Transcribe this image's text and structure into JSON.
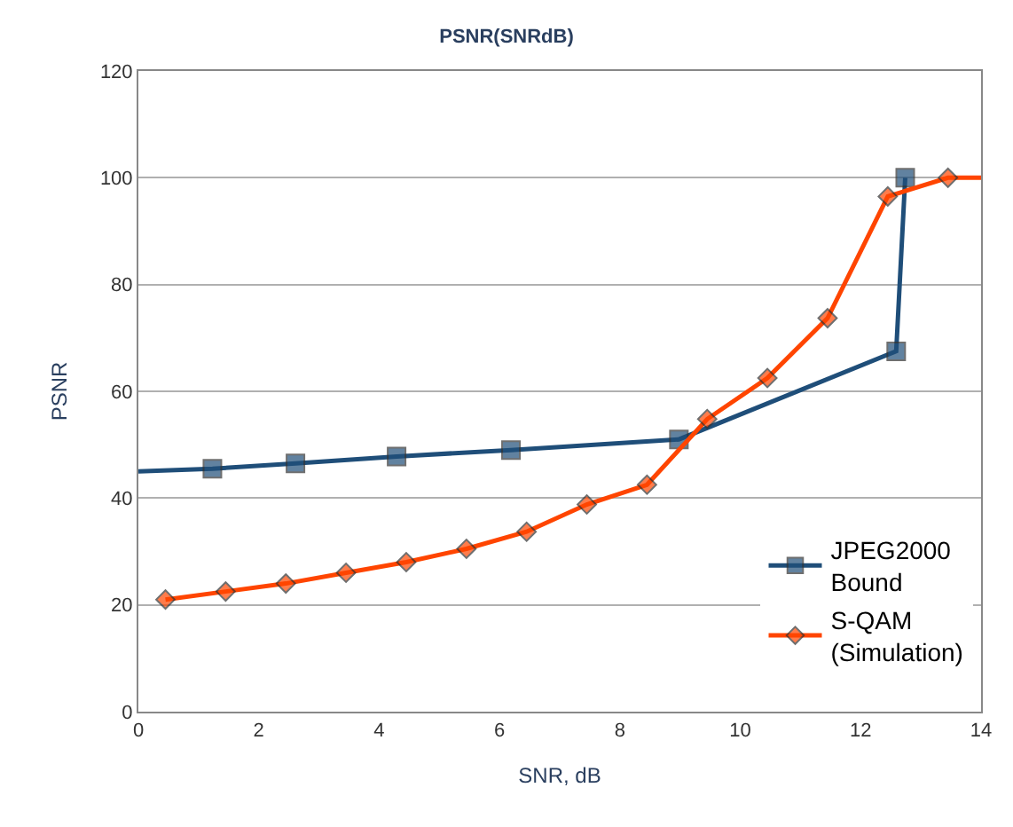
{
  "chart_data": {
    "type": "line",
    "title": "PSNR(SNRdB)",
    "xlabel": "SNR, dB",
    "ylabel": "PSNR",
    "xlim": [
      0,
      14
    ],
    "xticks": [
      0,
      2,
      4,
      6,
      8,
      10,
      12,
      14
    ],
    "ylim": [
      0,
      120
    ],
    "yticks": [
      0,
      20,
      40,
      60,
      80,
      100,
      120
    ],
    "grid": "y",
    "legend": "bottom right",
    "series": [
      {
        "name": "JPEG2000 Bound",
        "color": "#1f4e79",
        "marker": "square",
        "x": [
          0,
          1.23,
          2.61,
          4.29,
          6.19,
          8.98,
          12.59,
          12.74
        ],
        "values": [
          45,
          45.5,
          46.5,
          47.8,
          49,
          51,
          67.5,
          100
        ]
      },
      {
        "name": "S-QAM (Simulation)",
        "color": "#ff4500",
        "marker": "diamond",
        "x": [
          0.45,
          1.45,
          2.45,
          3.45,
          4.45,
          5.45,
          6.45,
          7.45,
          8.45,
          9.45,
          10.45,
          11.45,
          12.45,
          13.45,
          14
        ],
        "values": [
          21,
          22.5,
          24,
          26,
          28,
          30.5,
          33.7,
          38.8,
          42.5,
          54.8,
          62.5,
          73.7,
          96.5,
          100,
          100
        ]
      }
    ]
  }
}
